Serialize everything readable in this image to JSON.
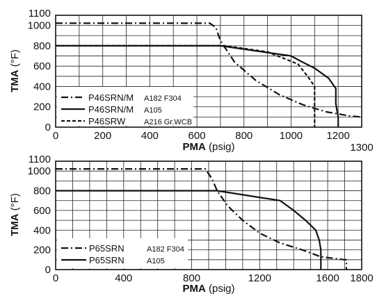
{
  "chart_data": [
    {
      "type": "line",
      "xlabel": {
        "bold": "PMA",
        "unit": "(psig)"
      },
      "ylabel": {
        "bold": "TMA",
        "unit": "(°F)"
      },
      "xlim": [
        0,
        1300
      ],
      "ylim": [
        0,
        1100
      ],
      "x_ticks": [
        0,
        200,
        400,
        600,
        800,
        1000,
        1200
      ],
      "x_tick_labels": [
        "0",
        "200",
        "400",
        "600",
        "800",
        "1000",
        "1200"
      ],
      "x_extra_label": "1300",
      "y_ticks": [
        0,
        200,
        400,
        600,
        800,
        1000,
        1100
      ],
      "y_tick_labels": [
        "0",
        "200",
        "400",
        "600",
        "800",
        "1000",
        "1100"
      ],
      "grid": true,
      "series": [
        {
          "name": "P46SRN/M",
          "spec": "A182 F304",
          "style": "dashdot",
          "x": [
            0,
            655,
            680,
            700,
            760,
            850,
            950,
            1050,
            1150,
            1250,
            1300
          ],
          "y": [
            1022,
            1022,
            980,
            850,
            640,
            460,
            320,
            220,
            150,
            110,
            100
          ]
        },
        {
          "name": "P46SRN/M",
          "spec": "A105",
          "style": "solid",
          "x": [
            0,
            700,
            1000,
            1040,
            1100,
            1160,
            1190,
            1190,
            1200,
            1200
          ],
          "y": [
            800,
            800,
            700,
            650,
            580,
            480,
            380,
            230,
            100,
            0
          ]
        },
        {
          "name": "P46SRW",
          "spec": "A216 Gr.WCB",
          "style": "dashed",
          "x": [
            0,
            720,
            900,
            1030,
            1080,
            1100,
            1100,
            1100
          ],
          "y": [
            800,
            800,
            740,
            620,
            470,
            400,
            110,
            0
          ]
        }
      ],
      "legend_position": "lower-left"
    },
    {
      "type": "line",
      "xlabel": {
        "bold": "PMA",
        "unit": "(psig)"
      },
      "ylabel": {
        "bold": "TMA",
        "unit": "(°F)"
      },
      "xlim": [
        0,
        1800
      ],
      "ylim": [
        0,
        1100
      ],
      "x_ticks": [
        0,
        400,
        800,
        1200,
        1600,
        1800
      ],
      "x_tick_labels": [
        "0",
        "400",
        "800",
        "1200",
        "1600",
        "1800"
      ],
      "y_ticks": [
        0,
        200,
        400,
        600,
        800,
        1000,
        1100
      ],
      "y_tick_labels": [
        "0",
        "200",
        "400",
        "600",
        "800",
        "1000",
        "1100"
      ],
      "grid": true,
      "series": [
        {
          "name": "P65SRN",
          "spec": "A182 F304",
          "style": "dashdot",
          "x": [
            0,
            880,
            920,
            950,
            1010,
            1100,
            1200,
            1320,
            1450,
            1560,
            1700,
            1710,
            1710
          ],
          "y": [
            1022,
            1022,
            920,
            800,
            650,
            500,
            370,
            270,
            200,
            130,
            100,
            100,
            0
          ]
        },
        {
          "name": "P65SRN",
          "spec": "A105",
          "style": "solid",
          "x": [
            0,
            950,
            1320,
            1400,
            1470,
            1530,
            1550,
            1560,
            1560
          ],
          "y": [
            800,
            800,
            700,
            600,
            500,
            400,
            300,
            200,
            0
          ]
        }
      ],
      "legend_position": "lower-left"
    }
  ]
}
